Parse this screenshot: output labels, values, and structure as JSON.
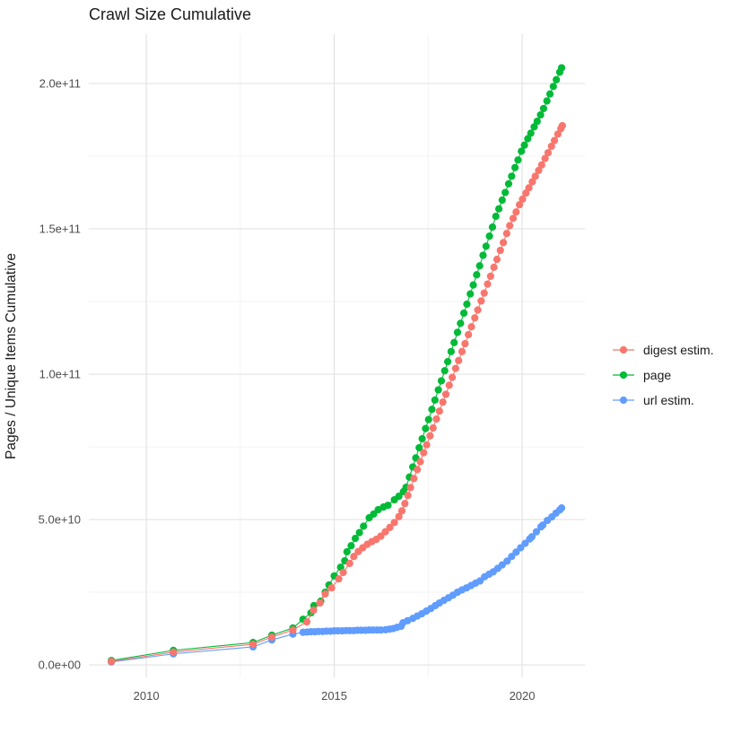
{
  "chart_data": {
    "type": "scatter",
    "title": "Crawl Size Cumulative",
    "xlabel": "",
    "ylabel": "Pages / Unique Items Cumulative",
    "value_scale": "values are in units of 1e9 (billions)",
    "x_range": [
      2008.47,
      2021.67
    ],
    "y_range_e9": [
      -4.3,
      217
    ],
    "grid": "major and minor, light gray on white",
    "legend_position": "right",
    "x_ticks": [
      {
        "v": 2010,
        "label": "2010"
      },
      {
        "v": 2015,
        "label": "2015"
      },
      {
        "v": 2020,
        "label": "2020"
      }
    ],
    "x_minor_ticks": [
      2012.5,
      2017.5
    ],
    "y_ticks": [
      {
        "v": 0,
        "label": "0.0e+00"
      },
      {
        "v": 50,
        "label": "5.0e+10"
      },
      {
        "v": 100,
        "label": "1.0e+11"
      },
      {
        "v": 150,
        "label": "1.5e+11"
      },
      {
        "v": 200,
        "label": "2.0e+11"
      }
    ],
    "y_minor_ticks": [
      25,
      75,
      125,
      175
    ],
    "series": [
      {
        "name": "digest estim.",
        "color": "#F8766D",
        "points": [
          [
            2009.07,
            1.2
          ],
          [
            2010.72,
            4.4
          ],
          [
            2012.84,
            7.1
          ],
          [
            2013.34,
            9.6
          ],
          [
            2013.9,
            12.0
          ],
          [
            2014.27,
            14.8
          ],
          [
            2014.45,
            18.8
          ],
          [
            2014.62,
            21.3
          ],
          [
            2014.76,
            24.4
          ],
          [
            2014.93,
            26.5
          ],
          [
            2015.12,
            29.6
          ],
          [
            2015.24,
            31.8
          ],
          [
            2015.41,
            34.9
          ],
          [
            2015.52,
            37.3
          ],
          [
            2015.64,
            39.0
          ],
          [
            2015.76,
            40.3
          ],
          [
            2015.88,
            41.5
          ],
          [
            2016.0,
            42.4
          ],
          [
            2016.12,
            43.2
          ],
          [
            2016.24,
            44.3
          ],
          [
            2016.36,
            45.8
          ],
          [
            2016.48,
            47.3
          ],
          [
            2016.6,
            49.0
          ],
          [
            2016.72,
            51.0
          ],
          [
            2016.8,
            53.0
          ],
          [
            2016.88,
            55.5
          ],
          [
            2016.96,
            58.3
          ],
          [
            2017.03,
            61.0
          ],
          [
            2017.12,
            64.1
          ],
          [
            2017.21,
            67.2
          ],
          [
            2017.29,
            69.9
          ],
          [
            2017.38,
            73.0
          ],
          [
            2017.46,
            75.7
          ],
          [
            2017.55,
            78.8
          ],
          [
            2017.63,
            81.5
          ],
          [
            2017.72,
            84.6
          ],
          [
            2017.8,
            87.3
          ],
          [
            2017.89,
            90.4
          ],
          [
            2017.97,
            93.1
          ],
          [
            2018.06,
            96.2
          ],
          [
            2018.14,
            98.9
          ],
          [
            2018.23,
            102.0
          ],
          [
            2018.31,
            104.7
          ],
          [
            2018.4,
            107.8
          ],
          [
            2018.48,
            110.5
          ],
          [
            2018.57,
            113.6
          ],
          [
            2018.65,
            116.3
          ],
          [
            2018.74,
            119.4
          ],
          [
            2018.82,
            122.1
          ],
          [
            2018.91,
            125.2
          ],
          [
            2018.99,
            127.9
          ],
          [
            2019.08,
            131.0
          ],
          [
            2019.16,
            133.7
          ],
          [
            2019.25,
            136.8
          ],
          [
            2019.33,
            139.5
          ],
          [
            2019.42,
            142.6
          ],
          [
            2019.5,
            145.3
          ],
          [
            2019.59,
            148.4
          ],
          [
            2019.67,
            151.1
          ],
          [
            2019.76,
            153.6
          ],
          [
            2019.84,
            155.8
          ],
          [
            2019.93,
            158.3
          ],
          [
            2020.01,
            160.2
          ],
          [
            2020.1,
            162.3
          ],
          [
            2020.18,
            164.1
          ],
          [
            2020.27,
            166.2
          ],
          [
            2020.35,
            168.1
          ],
          [
            2020.44,
            170.1
          ],
          [
            2020.52,
            172.0
          ],
          [
            2020.61,
            174.2
          ],
          [
            2020.69,
            176.2
          ],
          [
            2020.78,
            178.4
          ],
          [
            2020.86,
            180.4
          ],
          [
            2020.95,
            182.6
          ],
          [
            2021.03,
            184.5
          ],
          [
            2021.07,
            185.5
          ]
        ]
      },
      {
        "name": "page",
        "color": "#00BA38",
        "points": [
          [
            2009.07,
            1.5
          ],
          [
            2010.72,
            5.0
          ],
          [
            2012.84,
            7.7
          ],
          [
            2013.34,
            10.2
          ],
          [
            2013.9,
            12.7
          ],
          [
            2014.17,
            15.7
          ],
          [
            2014.38,
            17.9
          ],
          [
            2014.46,
            20.4
          ],
          [
            2014.64,
            21.9
          ],
          [
            2014.76,
            25.0
          ],
          [
            2014.86,
            27.5
          ],
          [
            2015.0,
            30.6
          ],
          [
            2015.17,
            33.6
          ],
          [
            2015.28,
            35.8
          ],
          [
            2015.34,
            38.9
          ],
          [
            2015.45,
            41.0
          ],
          [
            2015.56,
            43.5
          ],
          [
            2015.67,
            45.5
          ],
          [
            2015.78,
            47.7
          ],
          [
            2015.93,
            50.6
          ],
          [
            2016.05,
            51.9
          ],
          [
            2016.17,
            53.4
          ],
          [
            2016.31,
            54.3
          ],
          [
            2016.43,
            54.9
          ],
          [
            2016.6,
            56.8
          ],
          [
            2016.72,
            58.0
          ],
          [
            2016.84,
            59.6
          ],
          [
            2016.91,
            61.1
          ],
          [
            2017.0,
            64.6
          ],
          [
            2017.09,
            68.1
          ],
          [
            2017.17,
            71.2
          ],
          [
            2017.26,
            74.7
          ],
          [
            2017.34,
            77.8
          ],
          [
            2017.43,
            81.3
          ],
          [
            2017.51,
            84.4
          ],
          [
            2017.6,
            87.9
          ],
          [
            2017.68,
            91.1
          ],
          [
            2017.77,
            94.6
          ],
          [
            2017.85,
            97.7
          ],
          [
            2017.94,
            101.2
          ],
          [
            2018.02,
            104.3
          ],
          [
            2018.11,
            107.8
          ],
          [
            2018.19,
            110.9
          ],
          [
            2018.28,
            114.4
          ],
          [
            2018.36,
            117.5
          ],
          [
            2018.45,
            121.0
          ],
          [
            2018.53,
            124.1
          ],
          [
            2018.62,
            127.6
          ],
          [
            2018.7,
            130.7
          ],
          [
            2018.79,
            134.2
          ],
          [
            2018.87,
            137.3
          ],
          [
            2018.96,
            140.9
          ],
          [
            2019.04,
            144.0
          ],
          [
            2019.13,
            147.5
          ],
          [
            2019.21,
            150.6
          ],
          [
            2019.3,
            154.3
          ],
          [
            2019.38,
            156.9
          ],
          [
            2019.47,
            159.9
          ],
          [
            2019.55,
            162.5
          ],
          [
            2019.64,
            165.5
          ],
          [
            2019.72,
            168.1
          ],
          [
            2019.81,
            171.1
          ],
          [
            2019.89,
            173.7
          ],
          [
            2019.98,
            176.7
          ],
          [
            2020.06,
            178.8
          ],
          [
            2020.15,
            181.0
          ],
          [
            2020.23,
            182.9
          ],
          [
            2020.32,
            185.1
          ],
          [
            2020.4,
            187.0
          ],
          [
            2020.49,
            189.2
          ],
          [
            2020.57,
            191.4
          ],
          [
            2020.66,
            194.0
          ],
          [
            2020.74,
            196.4
          ],
          [
            2020.83,
            199.0
          ],
          [
            2020.91,
            201.3
          ],
          [
            2021.0,
            203.9
          ],
          [
            2021.05,
            205.4
          ]
        ]
      },
      {
        "name": "url estim.",
        "color": "#619CFF",
        "points": [
          [
            2009.07,
            1.0
          ],
          [
            2010.72,
            3.8
          ],
          [
            2012.84,
            6.2
          ],
          [
            2013.34,
            8.6
          ],
          [
            2013.9,
            10.6
          ],
          [
            2014.17,
            11.2
          ],
          [
            2014.28,
            11.3
          ],
          [
            2014.38,
            11.4
          ],
          [
            2014.48,
            11.4
          ],
          [
            2014.58,
            11.5
          ],
          [
            2014.69,
            11.5
          ],
          [
            2014.79,
            11.6
          ],
          [
            2014.9,
            11.6
          ],
          [
            2015.0,
            11.7
          ],
          [
            2015.1,
            11.7
          ],
          [
            2015.21,
            11.7
          ],
          [
            2015.31,
            11.8
          ],
          [
            2015.41,
            11.8
          ],
          [
            2015.52,
            11.8
          ],
          [
            2015.62,
            11.9
          ],
          [
            2015.72,
            11.9
          ],
          [
            2015.83,
            11.9
          ],
          [
            2015.93,
            12.0
          ],
          [
            2016.03,
            12.0
          ],
          [
            2016.14,
            12.0
          ],
          [
            2016.24,
            12.0
          ],
          [
            2016.37,
            12.1
          ],
          [
            2016.47,
            12.3
          ],
          [
            2016.57,
            12.5
          ],
          [
            2016.67,
            12.9
          ],
          [
            2016.78,
            13.3
          ],
          [
            2016.83,
            14.5
          ],
          [
            2016.95,
            15.2
          ],
          [
            2017.09,
            16.0
          ],
          [
            2017.21,
            16.8
          ],
          [
            2017.33,
            17.6
          ],
          [
            2017.45,
            18.5
          ],
          [
            2017.57,
            19.4
          ],
          [
            2017.69,
            20.4
          ],
          [
            2017.8,
            21.3
          ],
          [
            2017.92,
            22.2
          ],
          [
            2018.04,
            23.1
          ],
          [
            2018.16,
            24.0
          ],
          [
            2018.28,
            25.0
          ],
          [
            2018.4,
            25.8
          ],
          [
            2018.52,
            26.5
          ],
          [
            2018.64,
            27.3
          ],
          [
            2018.76,
            28.1
          ],
          [
            2018.88,
            28.9
          ],
          [
            2019.0,
            30.3
          ],
          [
            2019.12,
            31.2
          ],
          [
            2019.23,
            32.0
          ],
          [
            2019.35,
            33.2
          ],
          [
            2019.47,
            34.4
          ],
          [
            2019.6,
            35.7
          ],
          [
            2019.72,
            37.3
          ],
          [
            2019.84,
            38.8
          ],
          [
            2019.96,
            40.3
          ],
          [
            2020.08,
            41.8
          ],
          [
            2020.2,
            43.3
          ],
          [
            2020.26,
            44.1
          ],
          [
            2020.38,
            45.8
          ],
          [
            2020.5,
            47.5
          ],
          [
            2020.55,
            48.1
          ],
          [
            2020.67,
            49.7
          ],
          [
            2020.79,
            50.9
          ],
          [
            2020.9,
            52.2
          ],
          [
            2021.0,
            53.3
          ],
          [
            2021.05,
            54.0
          ]
        ]
      }
    ],
    "legend": [
      {
        "name": "digest estim.",
        "color": "#F8766D"
      },
      {
        "name": "page",
        "color": "#00BA38"
      },
      {
        "name": "url estim.",
        "color": "#619CFF"
      }
    ]
  },
  "style_colors": {
    "background": "#ffffff",
    "grid_major": "#e3e3e3",
    "grid_minor": "#f3f3f3",
    "tick_label": "#4d4d4d",
    "text": "#1a1a1a"
  }
}
